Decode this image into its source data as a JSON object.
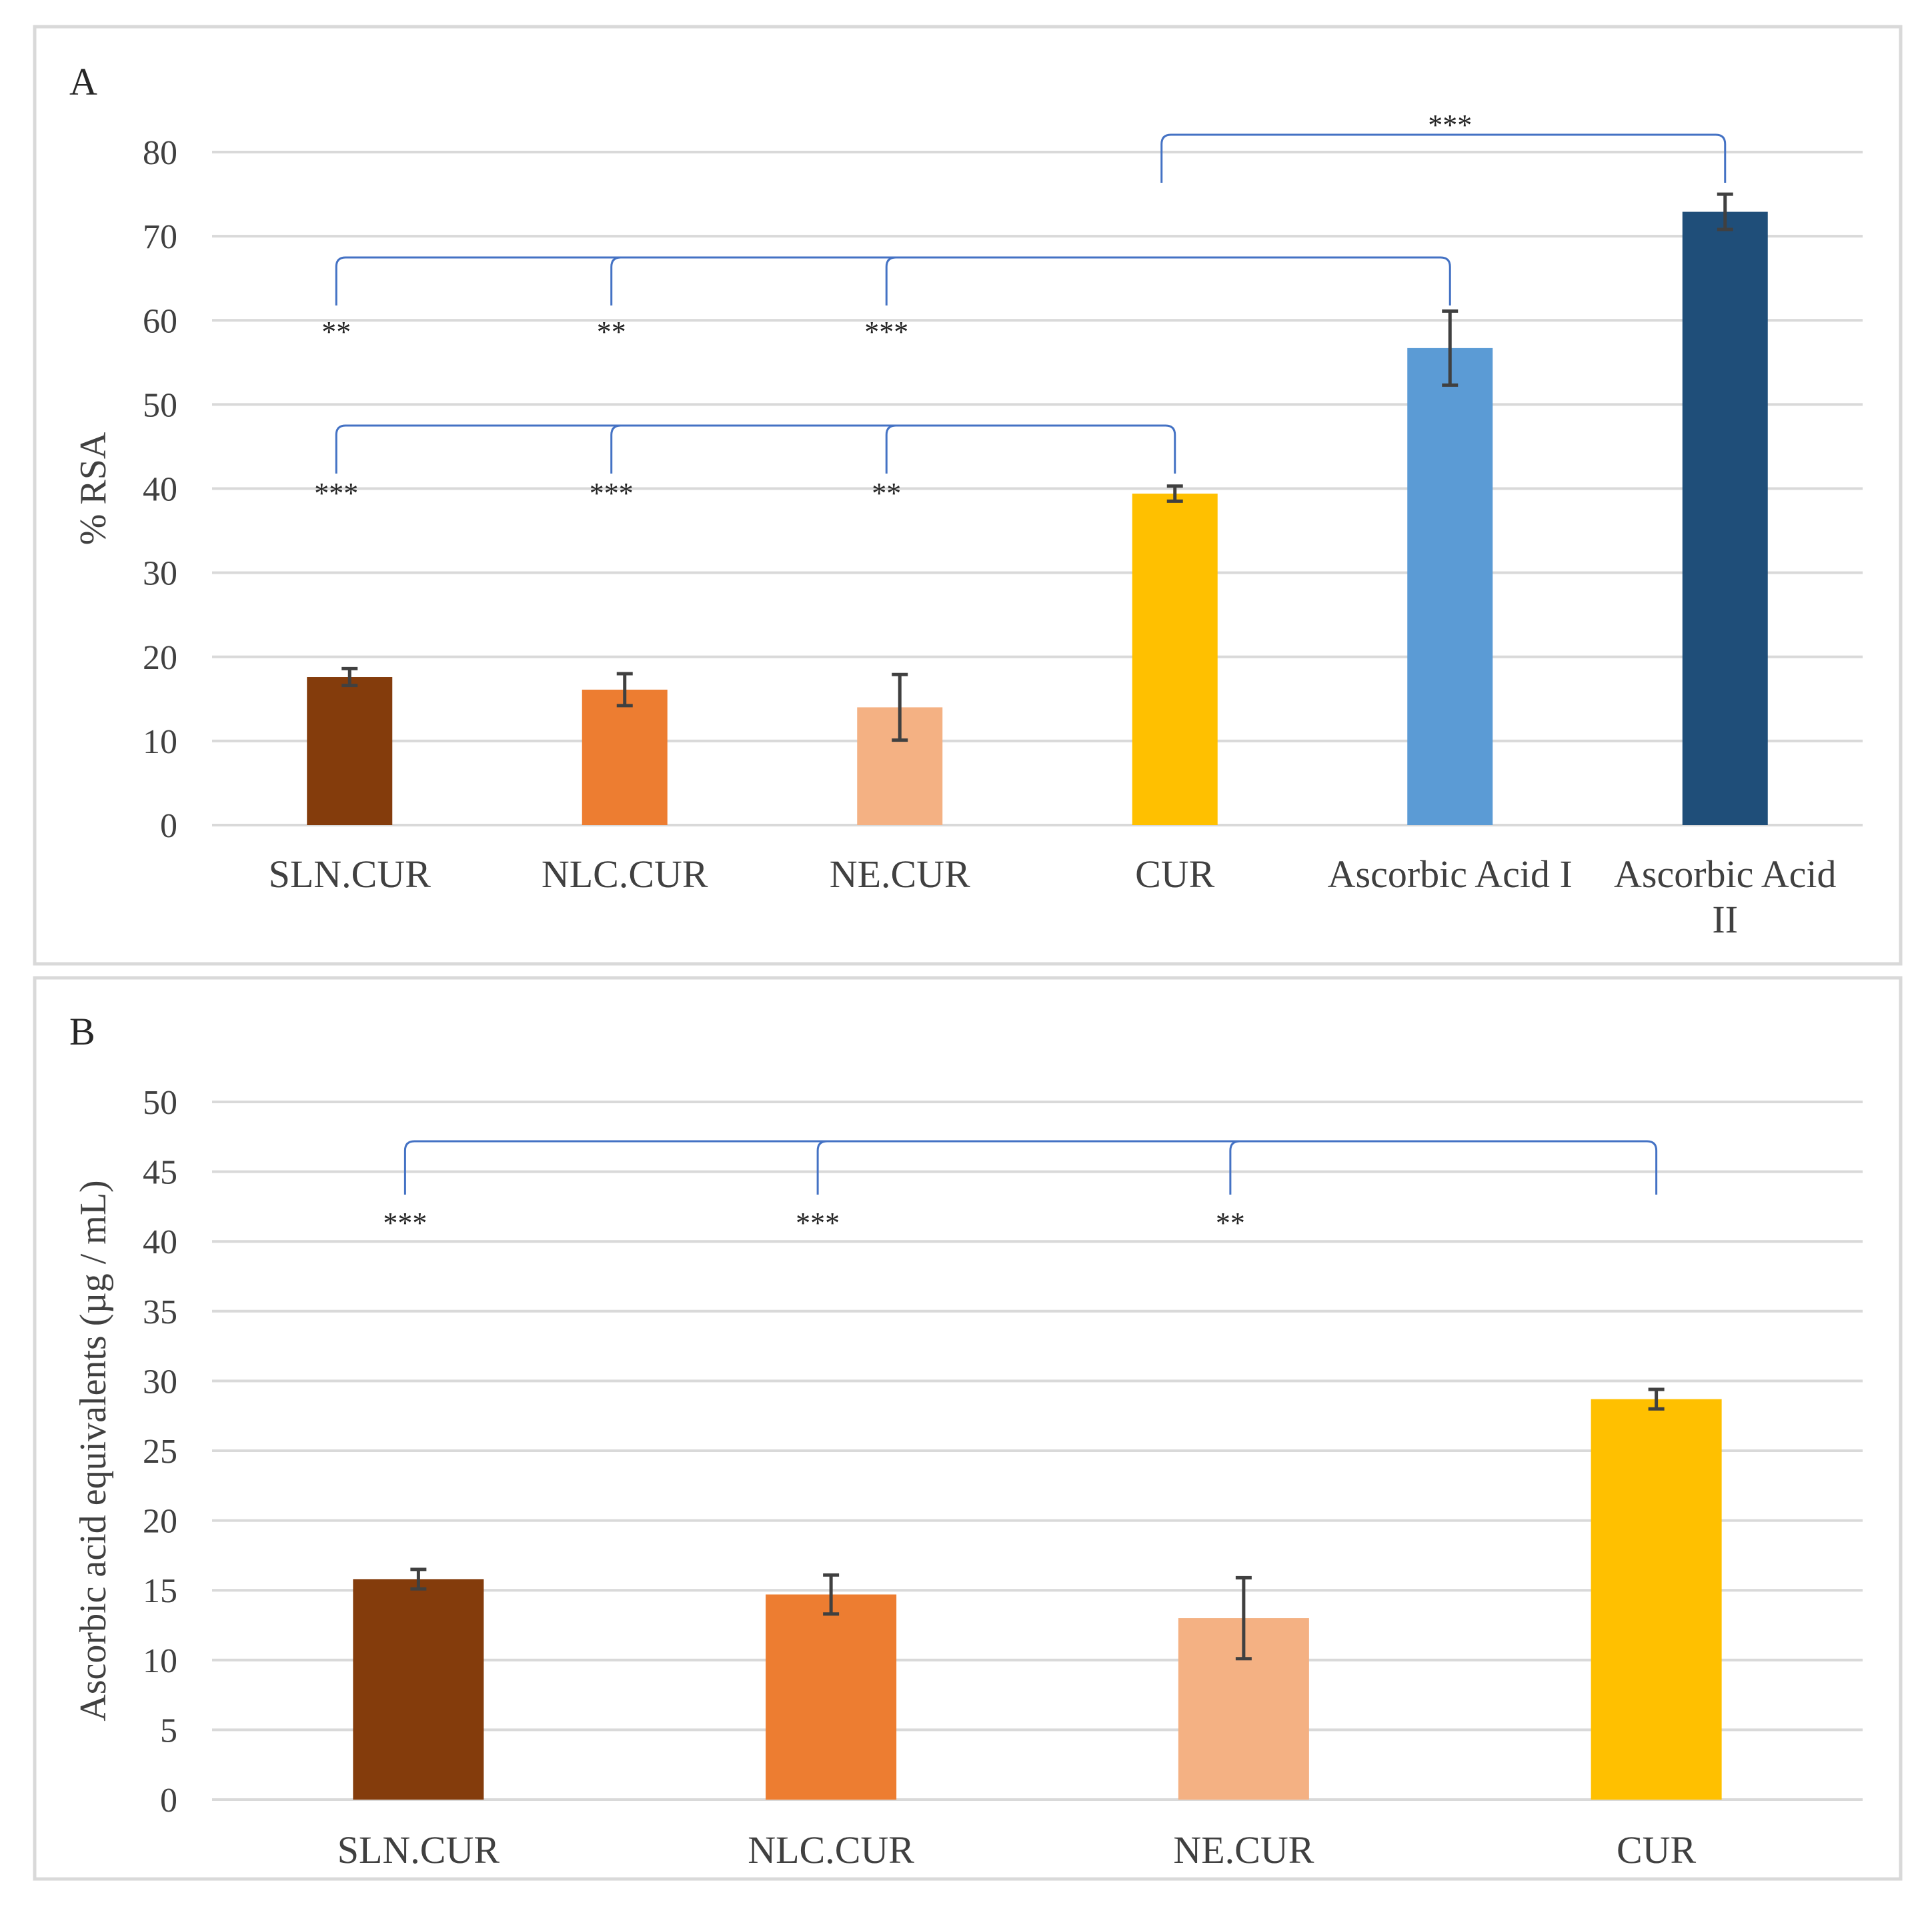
{
  "chart_data": [
    {
      "type": "bar",
      "panel_label": "A",
      "ylabel": "% RSA",
      "ylim": [
        0,
        80
      ],
      "yticks": [
        0,
        10,
        20,
        30,
        40,
        50,
        60,
        70,
        80
      ],
      "grid": true,
      "categories": [
        [
          "SLN.CUR"
        ],
        [
          "NLC.CUR"
        ],
        [
          "NE.CUR"
        ],
        [
          "CUR"
        ],
        [
          "Ascorbic Acid I"
        ],
        [
          "Ascorbic Acid",
          "II"
        ]
      ],
      "values": [
        17.6,
        16.1,
        14.0,
        39.4,
        56.7,
        72.9
      ],
      "errors": [
        1.0,
        1.9,
        3.9,
        0.9,
        4.4,
        2.1
      ],
      "colors": [
        "#843c0c",
        "#ed7d31",
        "#f4b183",
        "#ffc000",
        "#5b9bd5",
        "#1f4e79"
      ],
      "brackets": [
        {
          "targets": [
            0,
            1,
            2
          ],
          "to": 4,
          "stars": [
            "**",
            "**",
            "***"
          ]
        },
        {
          "targets": [
            0,
            1,
            2
          ],
          "to": 3,
          "stars": [
            "***",
            "***",
            "**"
          ]
        },
        {
          "targets": [
            3
          ],
          "to": 5,
          "stars": [
            "***"
          ]
        }
      ]
    },
    {
      "type": "bar",
      "panel_label": "B",
      "ylabel": "Ascorbic acid equivalents (µg / mL)",
      "ylim": [
        0,
        50
      ],
      "yticks": [
        0,
        5,
        10,
        15,
        20,
        25,
        30,
        35,
        40,
        45,
        50
      ],
      "grid": true,
      "categories": [
        [
          "SLN.CUR"
        ],
        [
          "NLC.CUR"
        ],
        [
          "NE.CUR"
        ],
        [
          "CUR"
        ]
      ],
      "values": [
        15.8,
        14.7,
        13.0,
        28.7
      ],
      "errors": [
        0.7,
        1.4,
        2.9,
        0.7
      ],
      "colors": [
        "#843c0c",
        "#ed7d31",
        "#f4b183",
        "#ffc000"
      ],
      "brackets": [
        {
          "targets": [
            0,
            1,
            2
          ],
          "to": 3,
          "stars": [
            "***",
            "***",
            "**"
          ]
        }
      ]
    }
  ]
}
